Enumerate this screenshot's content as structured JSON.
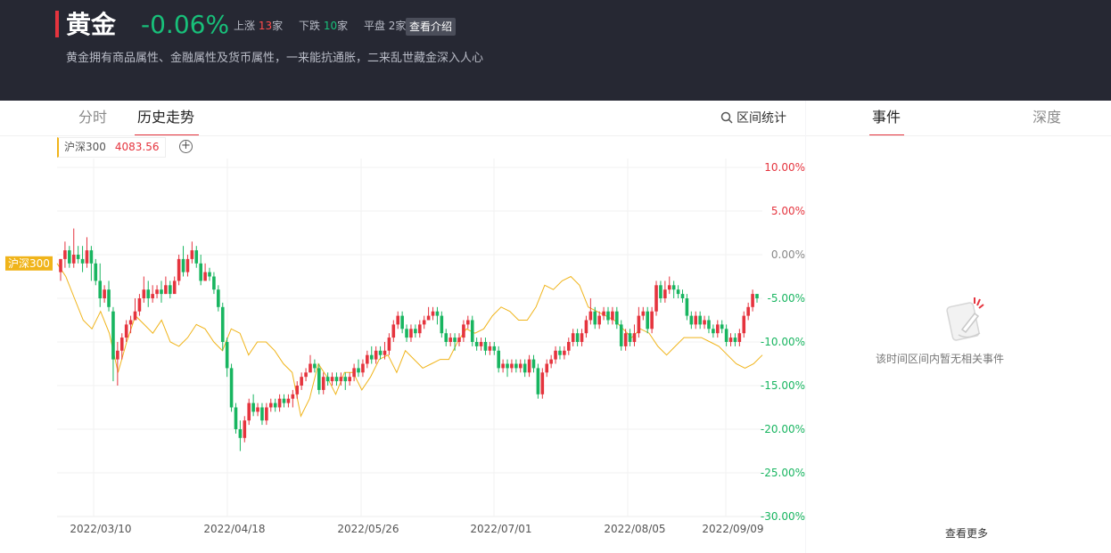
{
  "header": {
    "title": "黄金",
    "change": "-0.06%",
    "up_label": "上涨",
    "up_count": "13",
    "down_label": "下跌",
    "down_count": "10",
    "flat_label": "平盘",
    "flat_count": "2",
    "unit": "家",
    "intro_button": "查看介绍",
    "description": "黄金拥有商品属性、金融属性及货币属性，一来能抗通胀，二来乱世藏金深入人心"
  },
  "tabs": [
    {
      "label": "分时",
      "active": false
    },
    {
      "label": "历史走势",
      "active": true
    }
  ],
  "range_stat_label": "区间统计",
  "legend": {
    "name": "沪深300",
    "value": "4083.56",
    "add_symbol": "+"
  },
  "colors": {
    "up": "#e5343e",
    "down": "#18b560",
    "benchmark": "#f0b41a"
  },
  "side": {
    "tabs": [
      {
        "label": "事件",
        "active": true
      },
      {
        "label": "深度",
        "active": false
      }
    ],
    "empty_text": "该时间区间内暂无相关事件",
    "more_label": "查看更多"
  },
  "chart_data": {
    "type": "line",
    "y_ticks": [
      "10.00%",
      "5.00%",
      "0.00%",
      "-5.00%",
      "-10.00%",
      "-15.00%",
      "-20.00%",
      "-25.00%",
      "-30.00%"
    ],
    "y_tick_values": [
      10,
      5,
      0,
      -5,
      -10,
      -15,
      -20,
      -25,
      -30
    ],
    "ylim": [
      -30,
      10
    ],
    "x_ticks": [
      "2022/03/10",
      "2022/04/18",
      "2022/05/26",
      "2022/07/01",
      "2022/08/05",
      "2022/09/09"
    ],
    "benchmark_label": "沪深300",
    "series": [
      {
        "name": "沪深300",
        "style": "line",
        "values": [
          -1,
          -2.5,
          -5,
          -7.5,
          -8.5,
          -6.5,
          -9,
          -13.5,
          -10,
          -7,
          -8,
          -9,
          -7.5,
          -10,
          -10.5,
          -9.5,
          -8,
          -8.5,
          -10,
          -11,
          -8.5,
          -9,
          -11.5,
          -10,
          -10,
          -11,
          -12.5,
          -13.5,
          -18.5,
          -16.5,
          -12.5,
          -14,
          -16,
          -13.5,
          -13.5,
          -15.5,
          -14,
          -12,
          -11.5,
          -13.5,
          -11,
          -12,
          -13,
          -12.5,
          -12,
          -12,
          -10,
          -8.5,
          -9,
          -8.5,
          -7,
          -6,
          -6.5,
          -7.5,
          -7.5,
          -6,
          -3.5,
          -4,
          -3,
          -2.5,
          -3.5,
          -6,
          -6.5,
          -7,
          -7.5,
          -8.5,
          -9.5,
          -8.5,
          -9,
          -10.5,
          -11.5,
          -10.5,
          -9.5,
          -9.5,
          -9.5,
          -10,
          -10.5,
          -11.5,
          -12.5,
          -13,
          -12.5,
          -11.5
        ]
      },
      {
        "name": "黄金",
        "style": "candlestick",
        "candles": [
          [
            -2,
            -0.5,
            -0.5,
            -3
          ],
          [
            -0.5,
            0.5,
            1.5,
            -1.5
          ],
          [
            0.5,
            -1,
            1,
            -1.5
          ],
          [
            -1,
            0,
            3,
            -1.5
          ],
          [
            0,
            -0.5,
            1,
            -1
          ],
          [
            -0.5,
            -1,
            1,
            -2
          ],
          [
            -1,
            0.5,
            2,
            -1.5
          ],
          [
            0.5,
            -1,
            1,
            -3
          ],
          [
            -1,
            -3,
            -0.5,
            -3.5
          ],
          [
            -3,
            -5,
            -1,
            -6
          ],
          [
            -5,
            -4,
            -3.5,
            -5.5
          ],
          [
            -4,
            -6,
            -3,
            -6.5
          ],
          [
            -6.5,
            -12,
            -6,
            -14.5
          ],
          [
            -12,
            -11,
            -10,
            -15
          ],
          [
            -11,
            -9.5,
            -9,
            -12
          ],
          [
            -9.5,
            -8,
            -7.5,
            -10
          ],
          [
            -8,
            -7.5,
            -7,
            -9
          ],
          [
            -7.5,
            -6.5,
            -5,
            -7
          ],
          [
            -6.5,
            -5,
            -4.5,
            -7
          ],
          [
            -5,
            -4,
            -2.5,
            -5.5
          ],
          [
            -4,
            -5,
            -3,
            -6
          ],
          [
            -5,
            -4.5,
            -3.5,
            -5.5
          ],
          [
            -4.5,
            -4,
            -3.5,
            -5
          ],
          [
            -4,
            -4.5,
            -3,
            -5.5
          ],
          [
            -4.5,
            -3.5,
            -2.5,
            -4.5
          ],
          [
            -3.5,
            -4.5,
            -3,
            -5
          ],
          [
            -4.5,
            -3,
            -2.5,
            -3.5
          ],
          [
            -3,
            -0.5,
            0,
            -3.5
          ],
          [
            -0.5,
            -2,
            1,
            -2.5
          ],
          [
            -2,
            -0.5,
            0,
            -2.5
          ],
          [
            -0.5,
            0.5,
            1.5,
            -1
          ],
          [
            0.5,
            -1,
            1,
            -1.5
          ],
          [
            -1,
            -3,
            0,
            -3.5
          ],
          [
            -3,
            -2,
            -1,
            -3
          ],
          [
            -2,
            -2.5,
            -1.5,
            -3
          ],
          [
            -2.5,
            -4,
            -2,
            -4.5
          ],
          [
            -4,
            -6,
            -3.5,
            -6.5
          ],
          [
            -6,
            -10,
            -5.5,
            -11
          ],
          [
            -10,
            -13,
            -9.5,
            -14
          ],
          [
            -13,
            -17.5,
            -12.5,
            -18
          ],
          [
            -17.5,
            -20,
            -17,
            -20.5
          ],
          [
            -20,
            -21,
            -19,
            -22.5
          ],
          [
            -21,
            -19,
            -18.5,
            -21.5
          ],
          [
            -19,
            -17,
            -16.5,
            -19.5
          ],
          [
            -17,
            -18,
            -16,
            -18.5
          ],
          [
            -18,
            -17.5,
            -17,
            -18.5
          ],
          [
            -17.5,
            -19,
            -17,
            -19.5
          ],
          [
            -19,
            -17.5,
            -17,
            -19.5
          ],
          [
            -17.5,
            -17,
            -16.5,
            -18
          ],
          [
            -17,
            -17.5,
            -16.5,
            -18
          ],
          [
            -17.5,
            -16.5,
            -16,
            -18
          ],
          [
            -16.5,
            -17,
            -16,
            -17.5
          ],
          [
            -17,
            -16.5,
            -16,
            -17.5
          ],
          [
            -16.5,
            -16,
            -15.5,
            -17.5
          ],
          [
            -16,
            -15,
            -14.5,
            -16.5
          ],
          [
            -15,
            -14,
            -13.5,
            -15.5
          ],
          [
            -14,
            -13.5,
            -13,
            -14.5
          ],
          [
            -13.5,
            -12.5,
            -11.5,
            -13.5
          ],
          [
            -12.5,
            -13,
            -12,
            -13.5
          ],
          [
            -13,
            -15.5,
            -12.5,
            -16
          ],
          [
            -15.5,
            -14,
            -13.5,
            -16
          ],
          [
            -14,
            -14.5,
            -13.5,
            -15
          ],
          [
            -14.5,
            -14,
            -13.5,
            -15
          ],
          [
            -14,
            -14.5,
            -13.5,
            -15
          ],
          [
            -14.5,
            -14,
            -13.5,
            -15
          ],
          [
            -14,
            -14.5,
            -13.5,
            -15.5
          ],
          [
            -14.5,
            -14,
            -13.5,
            -15
          ],
          [
            -14,
            -13,
            -12.5,
            -14.5
          ],
          [
            -13,
            -13.5,
            -12,
            -14
          ],
          [
            -13.5,
            -12.5,
            -12,
            -14
          ],
          [
            -12.5,
            -11.5,
            -11,
            -13
          ],
          [
            -11.5,
            -12,
            -10.5,
            -12.5
          ],
          [
            -12,
            -11,
            -10.5,
            -12.5
          ],
          [
            -11,
            -11.5,
            -10.5,
            -12
          ],
          [
            -11.5,
            -11,
            -10,
            -12
          ],
          [
            -11,
            -9.5,
            -9,
            -11.5
          ],
          [
            -9.5,
            -8,
            -7.5,
            -10
          ],
          [
            -8,
            -7,
            -6.5,
            -8.5
          ],
          [
            -7,
            -8.5,
            -6.5,
            -9
          ],
          [
            -8.5,
            -9.5,
            -8,
            -10
          ],
          [
            -9.5,
            -8.5,
            -8,
            -10
          ],
          [
            -8.5,
            -9,
            -8,
            -9.5
          ],
          [
            -9,
            -8,
            -7.5,
            -9.5
          ],
          [
            -8,
            -7.5,
            -7,
            -8.5
          ],
          [
            -7.5,
            -7,
            -6,
            -7.5
          ],
          [
            -7,
            -6.5,
            -6,
            -7.5
          ],
          [
            -6.5,
            -7,
            -6,
            -8
          ],
          [
            -7,
            -9,
            -6.5,
            -9.5
          ],
          [
            -9,
            -10,
            -8.5,
            -10.5
          ],
          [
            -10,
            -9.5,
            -9,
            -10.5
          ],
          [
            -9.5,
            -10,
            -9,
            -11
          ],
          [
            -10,
            -9.5,
            -9,
            -10.5
          ],
          [
            -9.5,
            -8,
            -7.5,
            -10
          ],
          [
            -8,
            -7.5,
            -7,
            -8.5
          ],
          [
            -7.5,
            -10,
            -7,
            -10.5
          ],
          [
            -10,
            -10.5,
            -9.5,
            -11
          ],
          [
            -10.5,
            -10,
            -9.5,
            -11
          ],
          [
            -10,
            -11,
            -9.5,
            -11.5
          ],
          [
            -11,
            -10.5,
            -10,
            -11.5
          ],
          [
            -10.5,
            -11,
            -10,
            -11.5
          ],
          [
            -11,
            -13,
            -10.5,
            -13.5
          ],
          [
            -13,
            -12.5,
            -12,
            -13.5
          ],
          [
            -12.5,
            -13,
            -12,
            -14
          ],
          [
            -13,
            -12.5,
            -12,
            -13.5
          ],
          [
            -12.5,
            -13,
            -12,
            -13.5
          ],
          [
            -13,
            -12.5,
            -12,
            -13.5
          ],
          [
            -12.5,
            -13.5,
            -12,
            -14
          ],
          [
            -13.5,
            -12,
            -11.5,
            -14
          ],
          [
            -12,
            -13,
            -11.5,
            -13.5
          ],
          [
            -13,
            -16,
            -12.5,
            -16.5
          ],
          [
            -16,
            -13.5,
            -13,
            -16.5
          ],
          [
            -13.5,
            -12.5,
            -12,
            -14
          ],
          [
            -12.5,
            -12,
            -11.5,
            -13
          ],
          [
            -12,
            -11,
            -10.5,
            -12.5
          ],
          [
            -11,
            -11.5,
            -10.5,
            -12
          ],
          [
            -11.5,
            -11,
            -10.5,
            -12
          ],
          [
            -11,
            -10,
            -9.5,
            -11.5
          ],
          [
            -10,
            -9,
            -8.5,
            -10.5
          ],
          [
            -9,
            -10,
            -8.5,
            -10.5
          ],
          [
            -10,
            -9,
            -8.5,
            -10.5
          ],
          [
            -9,
            -7.5,
            -7,
            -9.5
          ],
          [
            -7.5,
            -6.5,
            -5,
            -8
          ],
          [
            -6.5,
            -8,
            -6,
            -8.5
          ],
          [
            -8,
            -7,
            -6.5,
            -8.5
          ],
          [
            -7,
            -6.5,
            -6,
            -7.5
          ],
          [
            -6.5,
            -7.5,
            -6,
            -8
          ],
          [
            -7.5,
            -6.5,
            -6,
            -8
          ],
          [
            -6.5,
            -8,
            -6,
            -8.5
          ],
          [
            -8,
            -10.5,
            -7.5,
            -11
          ],
          [
            -10.5,
            -9,
            -8.5,
            -11
          ],
          [
            -9,
            -10,
            -8.5,
            -10.5
          ],
          [
            -10,
            -9,
            -8,
            -10.5
          ],
          [
            -9,
            -7,
            -6,
            -9.5
          ],
          [
            -7,
            -6.5,
            -6,
            -7.5
          ],
          [
            -6.5,
            -8.5,
            -6,
            -9
          ],
          [
            -8.5,
            -6.5,
            -6,
            -9
          ],
          [
            -6.5,
            -3.5,
            -3,
            -7
          ],
          [
            -3.5,
            -5,
            -3,
            -5.5
          ],
          [
            -5,
            -4,
            -3,
            -5.5
          ],
          [
            -4,
            -3.5,
            -2.5,
            -4.5
          ],
          [
            -3.5,
            -4,
            -3,
            -5
          ],
          [
            -4,
            -4.5,
            -3.5,
            -5
          ],
          [
            -4.5,
            -5,
            -4,
            -5.5
          ],
          [
            -5,
            -7,
            -4.5,
            -7.5
          ],
          [
            -7,
            -8,
            -6.5,
            -8.5
          ],
          [
            -8,
            -7,
            -6.5,
            -8.5
          ],
          [
            -7,
            -8,
            -6.5,
            -8.5
          ],
          [
            -8,
            -7.5,
            -7,
            -8.5
          ],
          [
            -7.5,
            -8.5,
            -7,
            -9
          ],
          [
            -8.5,
            -9,
            -8,
            -9.5
          ],
          [
            -9,
            -8,
            -7.5,
            -9.5
          ],
          [
            -8,
            -8.5,
            -7.5,
            -9
          ],
          [
            -8.5,
            -10,
            -8,
            -10.5
          ],
          [
            -10,
            -9.5,
            -9,
            -10.5
          ],
          [
            -9.5,
            -10,
            -9,
            -10.5
          ],
          [
            -10,
            -9,
            -8.5,
            -10.5
          ],
          [
            -9,
            -7,
            -6.5,
            -9.5
          ],
          [
            -7,
            -6,
            -5.5,
            -7.5
          ],
          [
            -6,
            -4.5,
            -4,
            -6.5
          ],
          [
            -4.5,
            -5,
            -4.5,
            -5.5
          ]
        ]
      }
    ],
    "grid": true,
    "legend_position": "top-left"
  }
}
